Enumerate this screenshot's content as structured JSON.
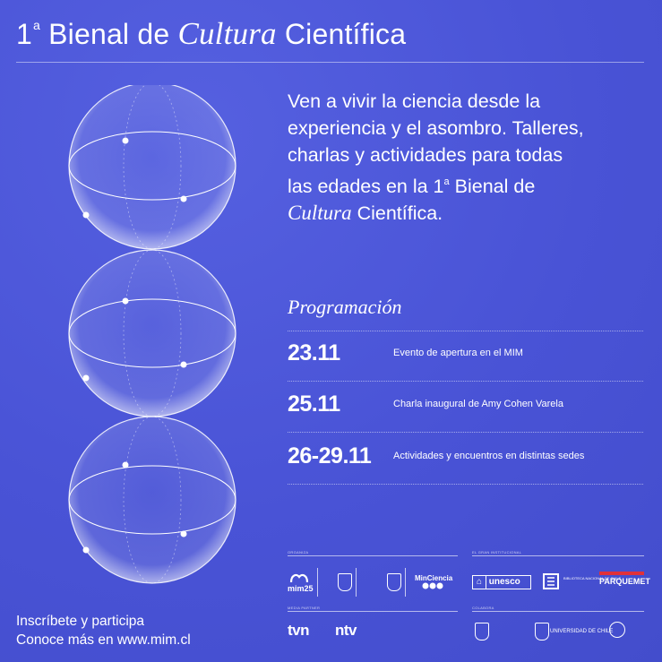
{
  "title": {
    "num": "1",
    "sup": "a",
    "pre": "Bienal de",
    "italic": "Cultura",
    "post": "Científica"
  },
  "intro": {
    "line1": "Ven a vivir la ciencia desde la",
    "line2": "experiencia y el asombro. Talleres,",
    "line3": "charlas y actividades para todas",
    "line4_pre": "las edades en la 1",
    "line4_sup": "a",
    "line4_post": "Bienal de",
    "line5_italic": "Cultura",
    "line5_post": "Científica."
  },
  "program": {
    "heading": "Programación",
    "events": [
      {
        "date": "23.11",
        "desc": "Evento de apertura en el MIM"
      },
      {
        "date": "25.11",
        "desc": "Charla inaugural de Amy Cohen Varela"
      },
      {
        "date": "26-29.11",
        "desc": "Actividades y encuentros en distintas sedes"
      }
    ]
  },
  "cta": {
    "line1": "Inscríbete y participa",
    "line2": "Conoce más en www.mim.cl"
  },
  "sponsors": {
    "organiza_label": "ORGANIZA",
    "institucional_label": "EL GRAN INSTITUCIONAL",
    "media_label": "MEDIA PARTNER",
    "colabora_label": "COLABORA",
    "mim": "mim25",
    "minciencia": "MinCiencia",
    "unesco": "unesco",
    "biblioteca": "BIBLIOTECA NACIONAL DE CHILE",
    "parquemet": "PARQUEMET",
    "tvn": "TVN",
    "ntv": "NTV",
    "uchile": "UNIVERSIDAD DE CHILE"
  },
  "colors": {
    "background": "#4a55d6",
    "foreground": "#ffffff",
    "parquemet_accent": "#e0313a"
  }
}
